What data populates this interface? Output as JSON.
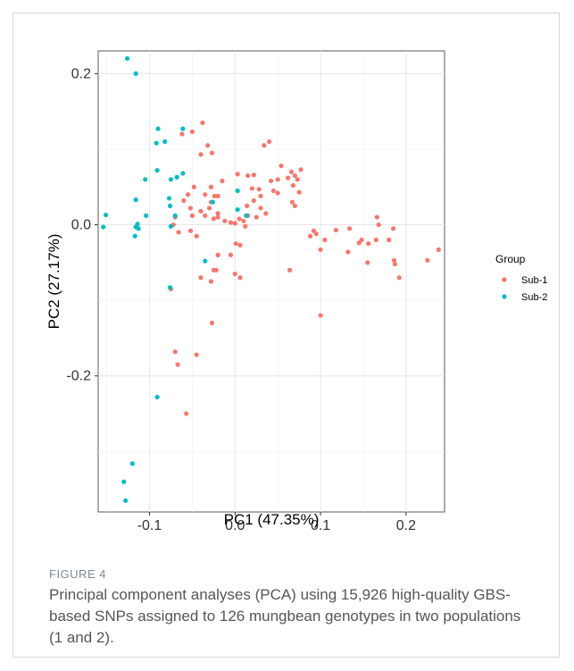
{
  "caption": {
    "label": "FIGURE 4",
    "text": "Principal component analyses (PCA) using 15,926 high-quality GBS-based SNPs assigned to 126 mungbean genotypes in two populations (1 and 2)."
  },
  "chart_data": {
    "type": "scatter",
    "xlabel": "PC1 (47.35%)",
    "ylabel": "PC2 (27.17%)",
    "xlim": [
      -0.16,
      0.245
    ],
    "ylim": [
      -0.38,
      0.23
    ],
    "x_ticks": [
      -0.1,
      0.0,
      0.1,
      0.2
    ],
    "x_tick_labels": [
      "-0.1",
      "0.0",
      "0.1",
      "0.2"
    ],
    "y_ticks": [
      -0.2,
      0.0,
      0.2
    ],
    "y_tick_labels": [
      "-0.2",
      "0.0",
      "0.2"
    ],
    "grid": true,
    "legend": {
      "title": "Group",
      "position": "right"
    },
    "series": [
      {
        "name": "Sub-1",
        "color": "#F8766D",
        "points": [
          [
            -0.038,
            0.135
          ],
          [
            -0.05,
            0.123
          ],
          [
            -0.062,
            0.12
          ],
          [
            -0.032,
            0.105
          ],
          [
            -0.04,
            0.093
          ],
          [
            -0.027,
            0.095
          ],
          [
            0.034,
            0.105
          ],
          [
            0.04,
            0.11
          ],
          [
            0.054,
            0.078
          ],
          [
            0.066,
            0.07
          ],
          [
            0.077,
            0.073
          ],
          [
            0.07,
            0.065
          ],
          [
            0.073,
            0.06
          ],
          [
            0.062,
            0.062
          ],
          [
            0.05,
            0.06
          ],
          [
            0.042,
            0.058
          ],
          [
            0.068,
            0.052
          ],
          [
            0.075,
            0.043
          ],
          [
            0.003,
            0.067
          ],
          [
            0.015,
            0.065
          ],
          [
            0.022,
            0.066
          ],
          [
            -0.015,
            0.058
          ],
          [
            -0.028,
            0.05
          ],
          [
            -0.048,
            0.05
          ],
          [
            -0.055,
            0.04
          ],
          [
            -0.035,
            0.04
          ],
          [
            -0.024,
            0.038
          ],
          [
            -0.02,
            0.038
          ],
          [
            -0.06,
            0.032
          ],
          [
            -0.052,
            0.022
          ],
          [
            -0.028,
            0.03
          ],
          [
            -0.03,
            0.022
          ],
          [
            -0.02,
            0.015
          ],
          [
            -0.035,
            0.012
          ],
          [
            -0.04,
            0.018
          ],
          [
            -0.05,
            0.012
          ],
          [
            -0.025,
            0.008
          ],
          [
            -0.02,
            0.01
          ],
          [
            -0.012,
            0.005
          ],
          [
            0.005,
            0.008
          ],
          [
            0.01,
            0.005
          ],
          [
            0.02,
            0.048
          ],
          [
            0.028,
            0.047
          ],
          [
            0.045,
            0.045
          ],
          [
            0.05,
            0.042
          ],
          [
            0.03,
            0.038
          ],
          [
            0.022,
            0.032
          ],
          [
            0.014,
            0.025
          ],
          [
            0.03,
            0.022
          ],
          [
            0.036,
            0.015
          ],
          [
            0.025,
            0.01
          ],
          [
            0.015,
            0.012
          ],
          [
            0.0,
            0.002
          ],
          [
            0.012,
            -0.002
          ],
          [
            -0.005,
            0.003
          ],
          [
            0.067,
            0.03
          ],
          [
            0.07,
            0.025
          ],
          [
            -0.07,
            0.01
          ],
          [
            -0.072,
            0.0
          ],
          [
            -0.052,
            -0.008
          ],
          [
            -0.045,
            -0.015
          ],
          [
            -0.066,
            -0.01
          ],
          [
            -0.02,
            -0.04
          ],
          [
            0.001,
            -0.025
          ],
          [
            0.006,
            -0.027
          ],
          [
            -0.005,
            -0.04
          ],
          [
            -0.025,
            -0.06
          ],
          [
            -0.022,
            -0.06
          ],
          [
            -0.04,
            -0.07
          ],
          [
            -0.028,
            -0.075
          ],
          [
            0.0,
            -0.065
          ],
          [
            0.006,
            -0.07
          ],
          [
            -0.075,
            -0.085
          ],
          [
            0.064,
            -0.06
          ],
          [
            -0.027,
            -0.13
          ],
          [
            -0.07,
            -0.168
          ],
          [
            -0.067,
            -0.185
          ],
          [
            -0.045,
            -0.172
          ],
          [
            -0.057,
            -0.25
          ],
          [
            0.1,
            -0.12
          ],
          [
            0.088,
            -0.015
          ],
          [
            0.092,
            -0.008
          ],
          [
            0.095,
            -0.012
          ],
          [
            0.105,
            -0.02
          ],
          [
            0.1,
            -0.033
          ],
          [
            0.118,
            -0.007
          ],
          [
            0.134,
            -0.005
          ],
          [
            0.132,
            -0.036
          ],
          [
            0.145,
            -0.024
          ],
          [
            0.148,
            -0.02
          ],
          [
            0.156,
            -0.025
          ],
          [
            0.155,
            -0.05
          ],
          [
            0.166,
            0.01
          ],
          [
            0.168,
            0.0
          ],
          [
            0.165,
            -0.02
          ],
          [
            0.18,
            -0.02
          ],
          [
            0.185,
            -0.005
          ],
          [
            0.186,
            -0.047
          ],
          [
            0.187,
            -0.052
          ],
          [
            0.192,
            -0.07
          ],
          [
            0.225,
            -0.047
          ],
          [
            0.238,
            -0.033
          ]
        ]
      },
      {
        "name": "Sub-2",
        "color": "#00BFC4",
        "points": [
          [
            -0.126,
            0.22
          ],
          [
            -0.116,
            0.2
          ],
          [
            -0.09,
            0.127
          ],
          [
            -0.092,
            0.108
          ],
          [
            -0.082,
            0.11
          ],
          [
            -0.061,
            0.127
          ],
          [
            -0.091,
            0.072
          ],
          [
            -0.105,
            0.06
          ],
          [
            -0.061,
            0.068
          ],
          [
            -0.075,
            0.06
          ],
          [
            -0.068,
            0.063
          ],
          [
            -0.077,
            0.035
          ],
          [
            -0.116,
            0.033
          ],
          [
            -0.076,
            0.025
          ],
          [
            -0.104,
            0.012
          ],
          [
            -0.07,
            0.012
          ],
          [
            -0.151,
            0.013
          ],
          [
            -0.154,
            -0.003
          ],
          [
            -0.114,
            0.001
          ],
          [
            -0.116,
            -0.003
          ],
          [
            -0.113,
            -0.005
          ],
          [
            -0.117,
            -0.015
          ],
          [
            -0.075,
            -0.002
          ],
          [
            -0.026,
            0.03
          ],
          [
            0.003,
            0.045
          ],
          [
            0.003,
            0.02
          ],
          [
            0.013,
            0.012
          ],
          [
            -0.035,
            -0.048
          ],
          [
            -0.076,
            -0.083
          ],
          [
            -0.091,
            -0.228
          ],
          [
            -0.12,
            -0.316
          ],
          [
            -0.13,
            -0.34
          ],
          [
            -0.128,
            -0.365
          ]
        ]
      }
    ]
  }
}
